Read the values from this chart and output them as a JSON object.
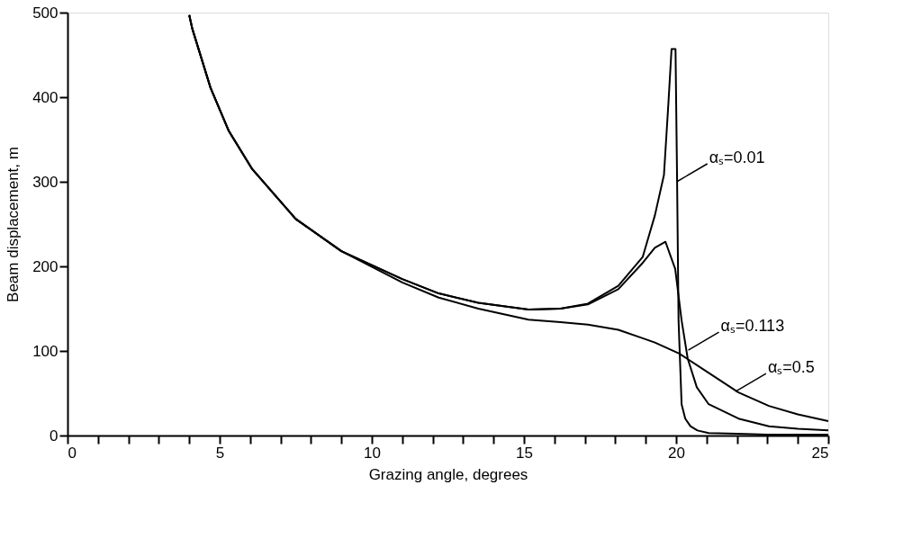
{
  "chart_data": {
    "type": "line",
    "xlabel": "Grazing angle, degrees",
    "ylabel": "Beam displacement, m",
    "xlim": [
      0,
      25
    ],
    "ylim": [
      0,
      500
    ],
    "xticks": [
      0,
      {
        "value": 1,
        "label": null
      },
      {
        "value": 2,
        "label": null
      },
      {
        "value": 3,
        "label": null
      },
      {
        "value": 4,
        "label": null
      },
      5,
      {
        "value": 6,
        "label": null
      },
      {
        "value": 7,
        "label": null
      },
      {
        "value": 8,
        "label": null
      },
      {
        "value": 9,
        "label": null
      },
      10,
      {
        "value": 11,
        "label": null
      },
      {
        "value": 12,
        "label": null
      },
      {
        "value": 13,
        "label": null
      },
      {
        "value": 14,
        "label": null
      },
      15,
      {
        "value": 16,
        "label": null
      },
      {
        "value": 17,
        "label": null
      },
      {
        "value": 18,
        "label": null
      },
      {
        "value": 19,
        "label": null
      },
      20,
      {
        "value": 21,
        "label": null
      },
      {
        "value": 22,
        "label": null
      },
      {
        "value": 23,
        "label": null
      },
      {
        "value": 24,
        "label": null
      },
      25
    ],
    "yticks": [
      0,
      100,
      200,
      300,
      400,
      500
    ],
    "grid": false,
    "legend": false,
    "marker": "none",
    "line_style": "solid",
    "series": [
      {
        "color": "#000000",
        "x": [
          4.0,
          4.1,
          4.7,
          5.3,
          6.07,
          7.5,
          9.0,
          11.0,
          12.2,
          13.5,
          15.15,
          16.2,
          17.1,
          18.1,
          18.9,
          19.3,
          19.6,
          19.75,
          19.85,
          19.98,
          20.03,
          20.08,
          20.18,
          20.3,
          20.47,
          20.7,
          21.07,
          22.0,
          23.0,
          24.0,
          25.0
        ],
        "values": [
          497,
          481,
          411,
          360,
          315,
          256,
          218,
          185,
          168,
          157,
          149,
          150,
          156,
          177,
          211,
          260,
          308,
          395,
          457,
          457,
          308,
          136,
          37,
          20,
          11,
          6,
          3,
          2,
          1,
          1,
          1
        ]
      },
      {
        "color": "#000000",
        "x": [
          4.0,
          4.1,
          4.7,
          5.3,
          6.07,
          7.5,
          9.0,
          11.0,
          12.2,
          13.5,
          15.15,
          16.2,
          17.1,
          18.1,
          18.9,
          19.3,
          19.65,
          19.97,
          20.18,
          20.38,
          20.68,
          21.07,
          22.05,
          23.05,
          24.0,
          25.0
        ],
        "values": [
          497,
          481,
          411,
          360,
          315,
          256,
          218,
          185,
          168,
          157,
          149,
          150,
          155,
          173,
          204,
          222,
          229,
          197,
          136,
          91,
          57,
          37,
          20,
          11,
          8,
          6
        ]
      },
      {
        "color": "#000000",
        "x": [
          4.0,
          4.1,
          4.7,
          5.3,
          6.07,
          7.5,
          9.0,
          11.0,
          12.2,
          13.5,
          15.15,
          16.2,
          17.1,
          18.1,
          18.9,
          19.3,
          20.1,
          21.07,
          22.05,
          23.05,
          24.0,
          25.0
        ],
        "values": [
          497,
          481,
          411,
          360,
          315,
          256,
          218,
          181,
          163,
          150,
          137,
          134,
          131,
          125,
          115,
          110,
          97,
          74,
          51,
          35,
          25,
          17
        ]
      }
    ],
    "annotations": [
      {
        "text": "αₛ=0.01",
        "x": 20.02,
        "y": 300
      },
      {
        "text": "αₛ=0.113",
        "x": 20.4,
        "y": 101
      },
      {
        "text": "αₛ=0.5",
        "x": 21.95,
        "y": 52
      }
    ]
  }
}
